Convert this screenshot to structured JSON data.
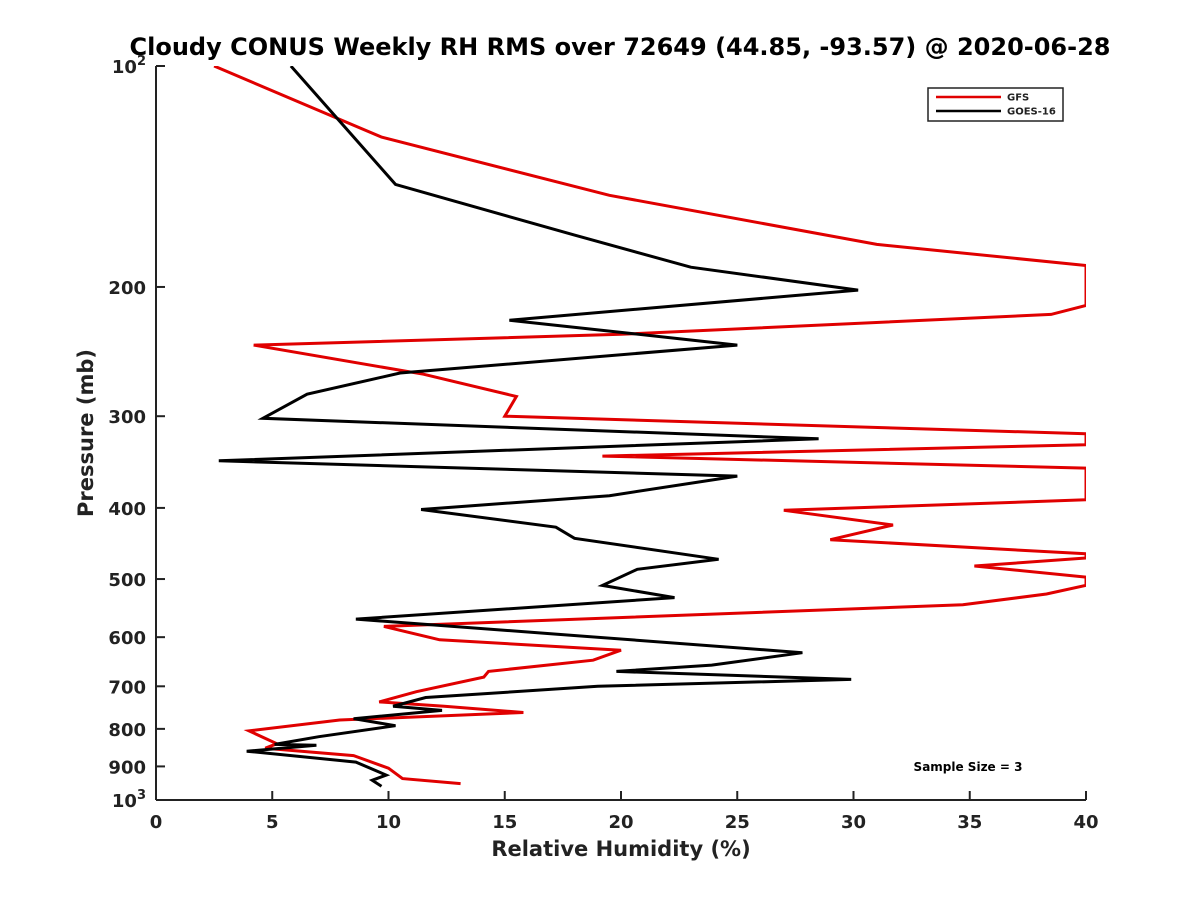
{
  "chart_data": {
    "type": "line",
    "title": "Cloudy CONUS Weekly RH RMS over 72649 (44.85, -93.57) @ 2020-06-28",
    "xlabel": "Relative Humidity (%)",
    "ylabel": "Pressure (mb)",
    "xlim": [
      0,
      40
    ],
    "ylim": [
      100,
      1000
    ],
    "y_scale": "log",
    "y_reversed": true,
    "x_ticks": [
      "0",
      "5",
      "10",
      "15",
      "20",
      "25",
      "30",
      "35",
      "40"
    ],
    "y_ticks": [
      {
        "value": 100,
        "base": "10",
        "exp": "2"
      },
      {
        "value": 200,
        "label": "200"
      },
      {
        "value": 300,
        "label": "300"
      },
      {
        "value": 400,
        "label": "400"
      },
      {
        "value": 500,
        "label": "500"
      },
      {
        "value": 600,
        "label": "600"
      },
      {
        "value": 700,
        "label": "700"
      },
      {
        "value": 800,
        "label": "800"
      },
      {
        "value": 900,
        "label": "900"
      },
      {
        "value": 1000,
        "base": "10",
        "exp": "3"
      }
    ],
    "grid": false,
    "legend_position": "top-right",
    "annotation": "Sample Size = 3",
    "series": [
      {
        "name": "GFS",
        "color": "#e00000",
        "points": [
          [
            2.5,
            100
          ],
          [
            9.7,
            125
          ],
          [
            19.5,
            150
          ],
          [
            31,
            175
          ],
          [
            40,
            187
          ],
          [
            40,
            212
          ],
          [
            38.5,
            218
          ],
          [
            20,
            232
          ],
          [
            4.2,
            240
          ],
          [
            11.5,
            263
          ],
          [
            15.5,
            282
          ],
          [
            15.0,
            300
          ],
          [
            40,
            317
          ],
          [
            40,
            328
          ],
          [
            19.2,
            340
          ],
          [
            40,
            353
          ],
          [
            40,
            390
          ],
          [
            27.0,
            403
          ],
          [
            31.7,
            422
          ],
          [
            29.0,
            442
          ],
          [
            40,
            462
          ],
          [
            40,
            468
          ],
          [
            35.2,
            480
          ],
          [
            40,
            497
          ],
          [
            40,
            510
          ],
          [
            38.3,
            524
          ],
          [
            34.7,
            542
          ],
          [
            9.8,
            580
          ],
          [
            12.2,
            605
          ],
          [
            20.0,
            625
          ],
          [
            18.8,
            645
          ],
          [
            14.3,
            668
          ],
          [
            14.1,
            680
          ],
          [
            11.2,
            712
          ],
          [
            9.6,
            735
          ],
          [
            12.4,
            745
          ],
          [
            15.8,
            760
          ],
          [
            7.9,
            778
          ],
          [
            4.0,
            805
          ],
          [
            5.2,
            838
          ],
          [
            4.7,
            850
          ],
          [
            8.5,
            870
          ],
          [
            10.0,
            905
          ],
          [
            10.6,
            935
          ],
          [
            13.1,
            950
          ]
        ]
      },
      {
        "name": "GOES-16",
        "color": "#000000",
        "points": [
          [
            5.8,
            100
          ],
          [
            10.3,
            145
          ],
          [
            18.0,
            170
          ],
          [
            23.0,
            188
          ],
          [
            30.2,
            202
          ],
          [
            15.2,
            222
          ],
          [
            25.0,
            240
          ],
          [
            10.5,
            262
          ],
          [
            6.5,
            280
          ],
          [
            4.6,
            302
          ],
          [
            28.5,
            322
          ],
          [
            2.7,
            345
          ],
          [
            25.0,
            362
          ],
          [
            19.5,
            385
          ],
          [
            11.4,
            402
          ],
          [
            17.2,
            425
          ],
          [
            18.0,
            440
          ],
          [
            24.2,
            470
          ],
          [
            20.7,
            485
          ],
          [
            19.2,
            510
          ],
          [
            22.3,
            530
          ],
          [
            8.6,
            567
          ],
          [
            27.8,
            630
          ],
          [
            23.9,
            655
          ],
          [
            19.8,
            668
          ],
          [
            29.9,
            685
          ],
          [
            19.0,
            700
          ],
          [
            11.6,
            725
          ],
          [
            10.2,
            745
          ],
          [
            12.3,
            755
          ],
          [
            8.5,
            775
          ],
          [
            10.3,
            792
          ],
          [
            7.0,
            820
          ],
          [
            5.1,
            840
          ],
          [
            6.9,
            842
          ],
          [
            3.9,
            858
          ],
          [
            8.6,
            888
          ],
          [
            9.9,
            925
          ],
          [
            9.3,
            940
          ],
          [
            9.7,
            958
          ]
        ]
      }
    ]
  }
}
